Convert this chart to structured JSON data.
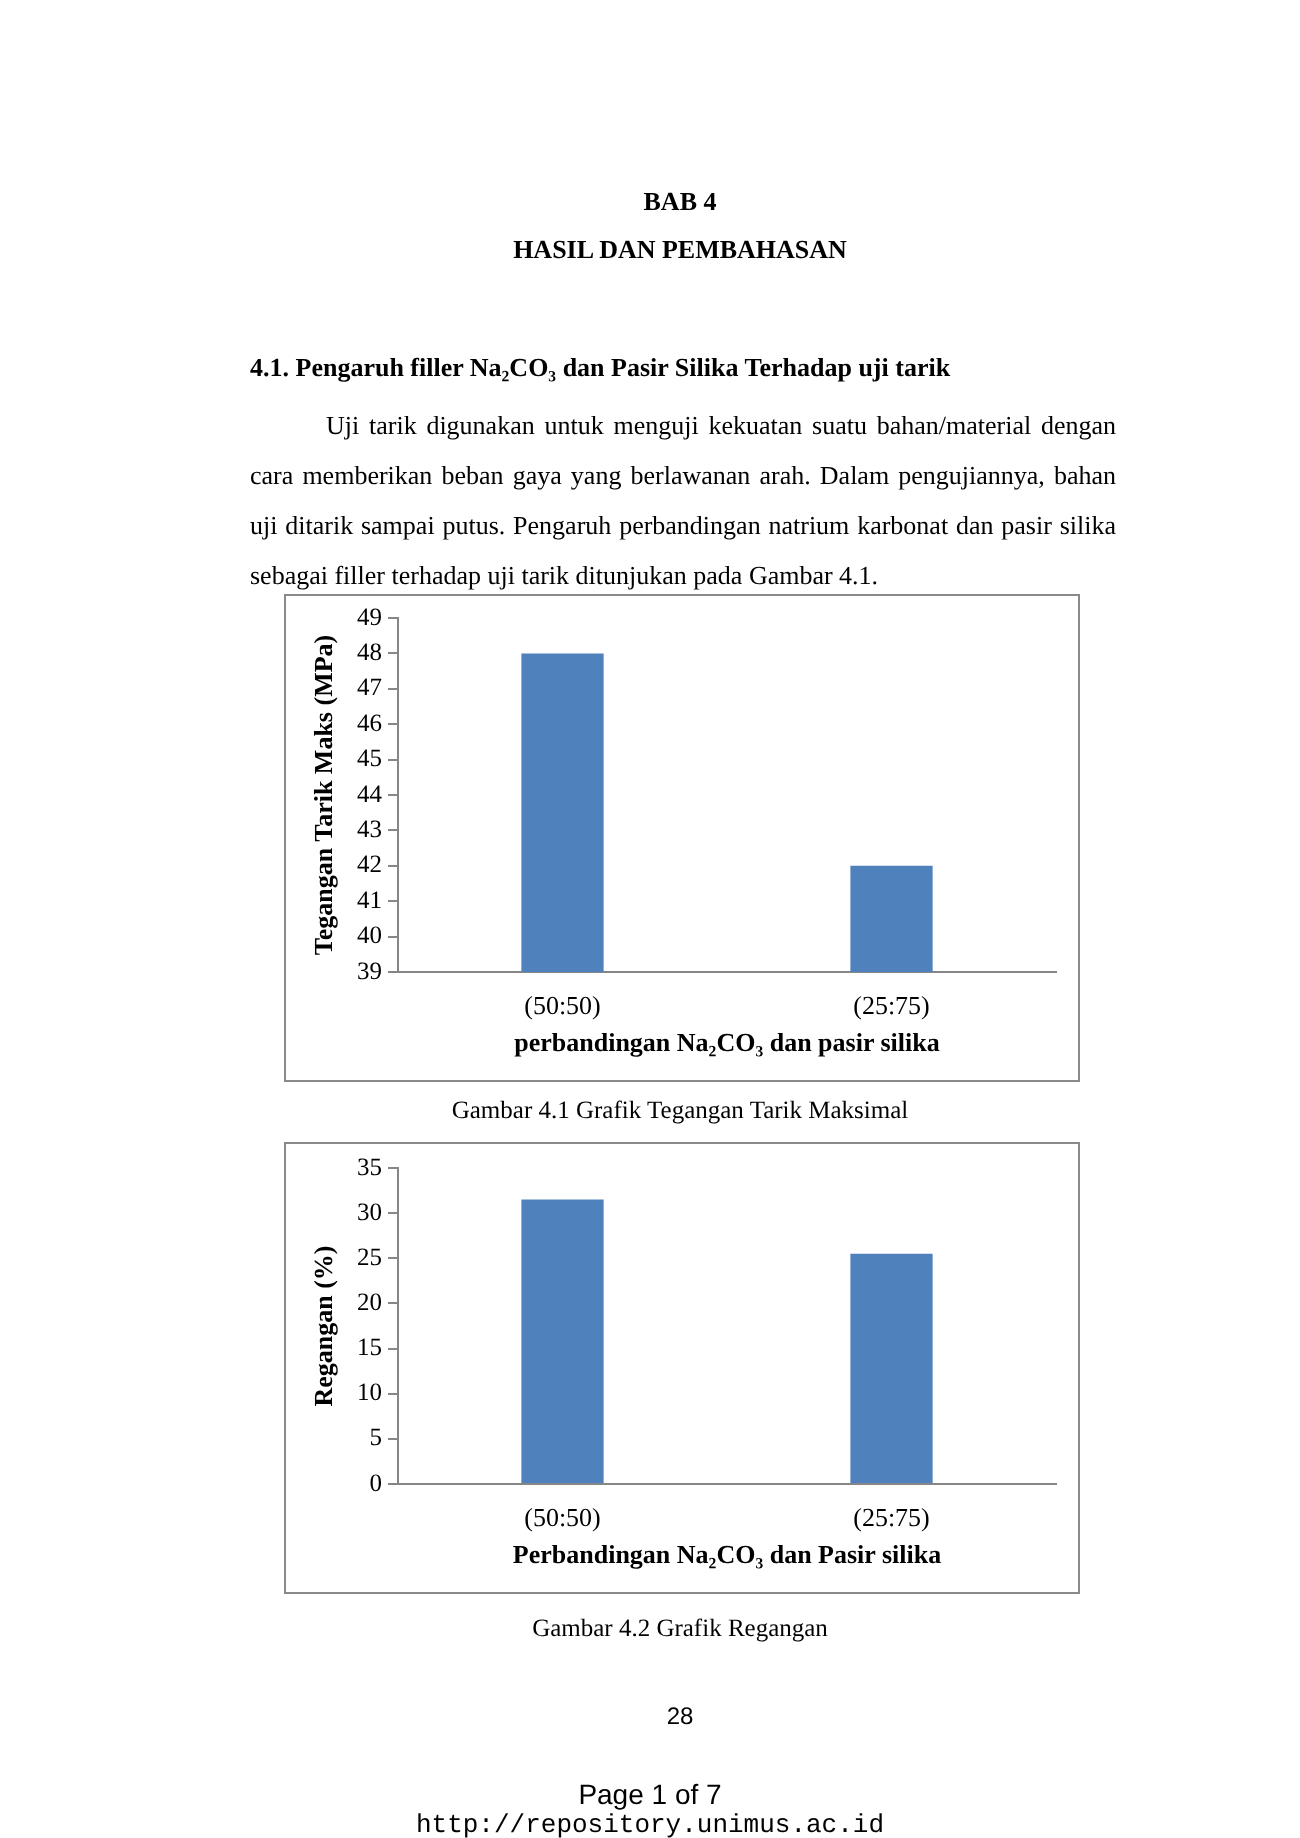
{
  "chart_data": [
    {
      "type": "bar",
      "title": "Gambar 4.1 Grafik Tegangan Tarik Maksimal",
      "xlabel": "perbandingan Na₂CO₃ dan pasir silika",
      "ylabel": "Tegangan Tarik Maks (MPa)",
      "categories": [
        "(50:50)",
        "(25:75)"
      ],
      "values": [
        48,
        42
      ],
      "color": "#4f81bd",
      "ylim": [
        39,
        49
      ],
      "yticks": [
        39,
        40,
        41,
        42,
        43,
        44,
        45,
        46,
        47,
        48,
        49
      ],
      "annotations": [
        "BAB 4",
        "HASIL DAN PEMBAHASAN",
        "4.1. Pengaruh filler Na₂CO₃ dan Pasir Silika Terhadap uji tarik",
        "Uji tarik digunakan untuk menguji kekuatan suatu bahan/material dengan cara memberikan beban gaya yang berlawanan arah. Dalam pengujiannya, bahan uji ditarik sampai putus. Pengaruh perbandingan natrium karbonat dan pasir silika sebagai filler terhadap uji tarik ditunjukan pada Gambar 4.1."
      ]
    },
    {
      "type": "bar",
      "title": "Gambar 4.2 Grafik Regangan",
      "xlabel": "Perbandingan Na₂CO₃ dan Pasir silika",
      "ylabel": "Regangan (%)",
      "categories": [
        "(50:50)",
        "(25:75)"
      ],
      "values": [
        31.5,
        25.5
      ],
      "color": "#4f81bd",
      "ylim": [
        0,
        35
      ],
      "yticks": [
        0,
        5,
        10,
        15,
        20,
        25,
        30,
        35
      ],
      "annotations": [
        "28",
        "Page 1 of 7",
        "http://repository.unimus.ac.id"
      ]
    }
  ]
}
